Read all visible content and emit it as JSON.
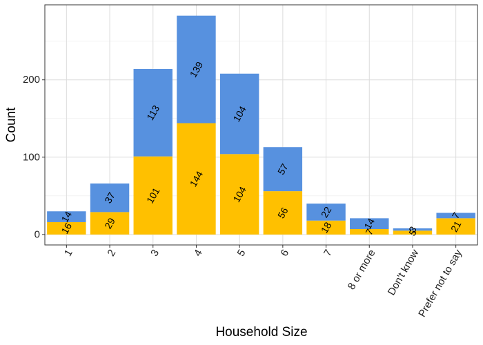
{
  "chart_data": {
    "type": "bar",
    "stacked": true,
    "categories": [
      "1",
      "2",
      "3",
      "4",
      "5",
      "6",
      "7",
      "8 or more",
      "Don't know",
      "Prefer not to say"
    ],
    "series": [
      {
        "color": "#FFC000",
        "values": [
          16,
          29,
          101,
          144,
          104,
          56,
          18,
          7,
          5,
          21
        ]
      },
      {
        "color": "#5791DF",
        "values": [
          14,
          37,
          113,
          139,
          104,
          57,
          22,
          14,
          3,
          7
        ]
      }
    ],
    "xlabel": "Household Size",
    "ylabel": "Count",
    "ylim": [
      -13.5,
      297
    ],
    "yticks": [
      0,
      100,
      200
    ],
    "grid": true,
    "legend": "none"
  }
}
